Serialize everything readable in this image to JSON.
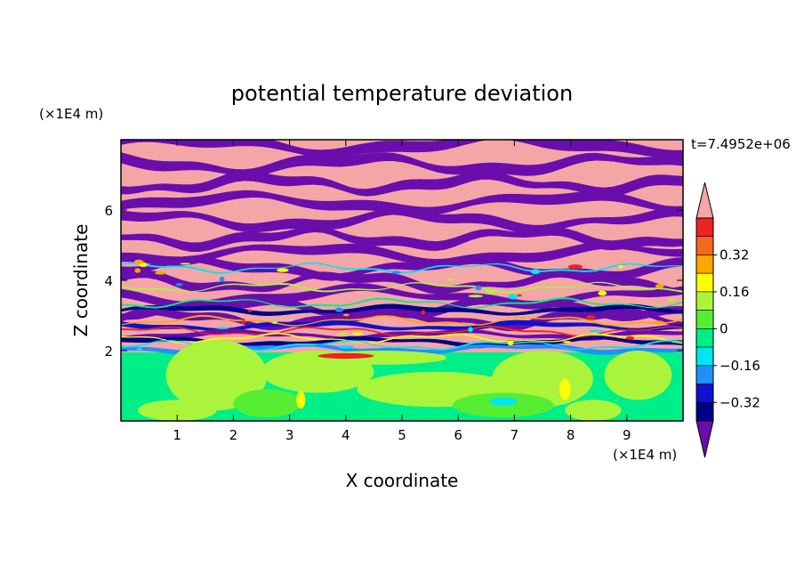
{
  "chart_data": {
    "type": "heatmap",
    "title": "potential temperature deviation",
    "xlabel": "X coordinate",
    "ylabel": "Z coordinate",
    "x_unit": "(×1E4 m)",
    "y_unit": "(×1E4 m)",
    "time_label": "t=7.4952e+06",
    "xlim": [
      0,
      10
    ],
    "ylim": [
      0,
      8
    ],
    "x_ticks": [
      1,
      2,
      3,
      4,
      5,
      6,
      7,
      8,
      9
    ],
    "y_ticks": [
      2,
      4,
      6
    ],
    "colorbar": {
      "tick_values": [
        0.32,
        0.16,
        0,
        -0.16,
        -0.32
      ],
      "tick_labels": [
        "0.32",
        "0.16",
        "0",
        "−0.16",
        "−0.32"
      ],
      "levels": [
        {
          "color": "#f4a6a6"
        },
        {
          "color": "#ee2222"
        },
        {
          "color": "#f26a1e"
        },
        {
          "color": "#ffa500"
        },
        {
          "color": "#ffff00"
        },
        {
          "color": "#aaf53c"
        },
        {
          "color": "#55ee33"
        },
        {
          "color": "#00ee88"
        },
        {
          "color": "#00e5ee"
        },
        {
          "color": "#1e90ff"
        },
        {
          "color": "#1111cc"
        },
        {
          "color": "#000088"
        },
        {
          "color": "#6a0dad"
        }
      ]
    }
  }
}
